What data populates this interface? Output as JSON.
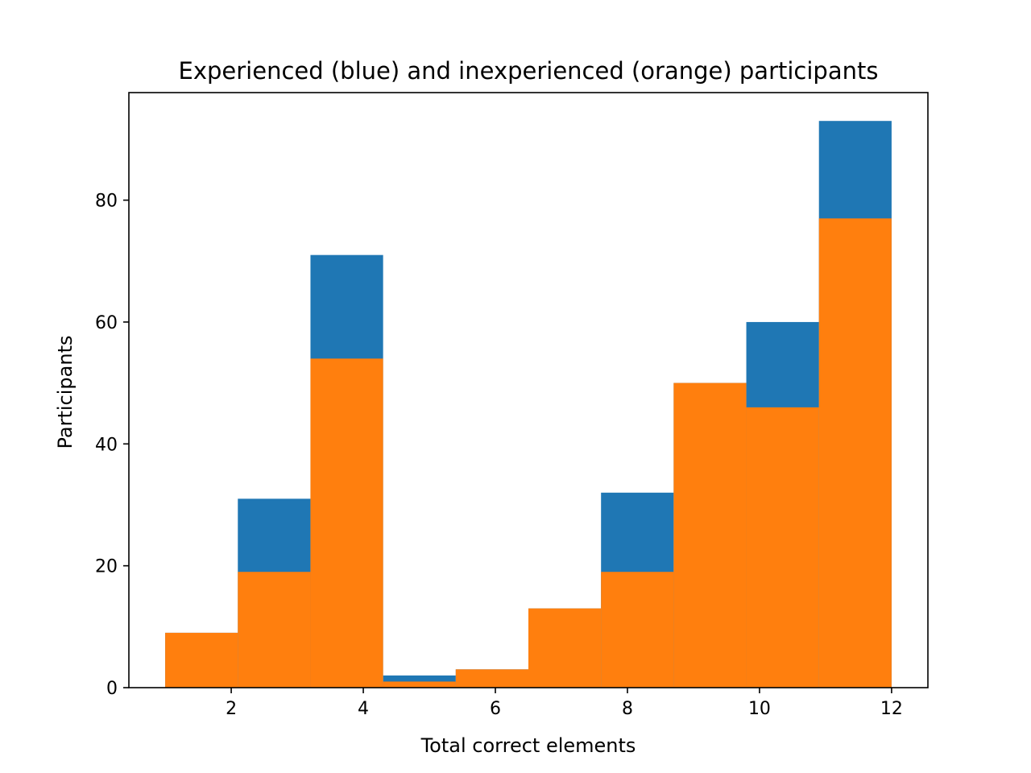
{
  "chart_data": {
    "type": "bar",
    "title": "Experienced (blue) and inexperienced (orange) participants",
    "xlabel": "Total correct elements",
    "ylabel": "Participants",
    "xlim": [
      0.45,
      12.55
    ],
    "ylim": [
      0,
      97.65
    ],
    "xticks": [
      2,
      4,
      6,
      8,
      10,
      12
    ],
    "yticks": [
      0,
      20,
      40,
      60,
      80
    ],
    "bin_edges": [
      1.0,
      2.1,
      3.2,
      4.3,
      5.4,
      6.5,
      7.6,
      8.7,
      9.8,
      10.9,
      12.0
    ],
    "series": [
      {
        "name": "Experienced",
        "color": "#1f77b4",
        "values": [
          9,
          31,
          71,
          2,
          3,
          13,
          32,
          50,
          60,
          93
        ]
      },
      {
        "name": "Inexperienced",
        "color": "#ff7f0e",
        "values": [
          9,
          19,
          54,
          1,
          3,
          13,
          19,
          50,
          46,
          77
        ]
      }
    ],
    "grid": false,
    "legend": "none"
  }
}
